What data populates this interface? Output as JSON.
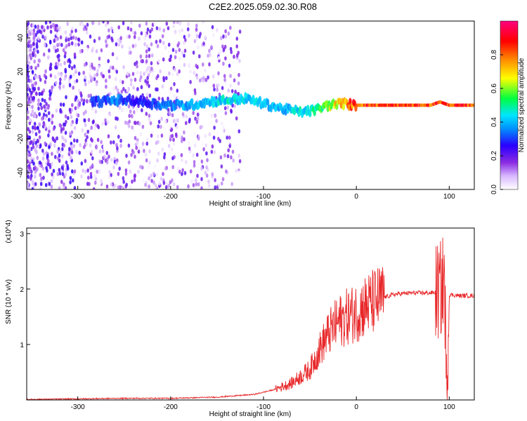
{
  "figure": {
    "title": "C2E2.2025.059.02.30.R08"
  },
  "chart_data": [
    {
      "type": "heatmap",
      "xlabel": "Height of straight line (km)",
      "ylabel": "Frequency (Hz)",
      "xlim": [
        -355,
        127
      ],
      "ylim": [
        -50,
        50
      ],
      "xticks": [
        -300,
        -200,
        -100,
        0,
        100
      ],
      "yticks": [
        -40,
        -20,
        0,
        20,
        40
      ],
      "colorbar": {
        "label": "Normalized spectral amplitude",
        "ticks": [
          "0.0",
          "0.2",
          "0.4",
          "0.6",
          "0.8"
        ],
        "range": [
          0,
          1
        ],
        "colormap": "rainbow (white-violet-blue-cyan-green-yellow-red-magenta)"
      },
      "ridge": {
        "note": "dominant frequency band near 0 Hz",
        "x": [
          -280,
          -260,
          -240,
          -220,
          -200,
          -180,
          -160,
          -140,
          -120,
          -100,
          -80,
          -60,
          -45,
          -30,
          -15,
          0,
          20,
          40,
          60,
          80,
          90,
          100,
          127
        ],
        "freq": [
          2,
          3,
          3,
          1,
          0,
          0,
          2,
          3,
          4,
          1,
          -2,
          -4,
          -3,
          0,
          1,
          0,
          0,
          0,
          0,
          0,
          2,
          0,
          0
        ],
        "amplitude": [
          0.35,
          0.4,
          0.3,
          0.35,
          0.4,
          0.45,
          0.45,
          0.5,
          0.5,
          0.45,
          0.45,
          0.5,
          0.55,
          0.7,
          0.85,
          0.95,
          0.95,
          0.95,
          0.95,
          0.95,
          0.98,
          0.95,
          0.95
        ]
      }
    },
    {
      "type": "line",
      "xlabel": "Height of straight line (km)",
      "ylabel": "SNR (10 * v/v)",
      "y_multiplier": "(x10^4)",
      "xlim": [
        -355,
        127
      ],
      "ylim": [
        0,
        3.1
      ],
      "xticks": [
        -300,
        -200,
        -100,
        0,
        100
      ],
      "yticks": [
        1,
        2,
        3
      ],
      "color": "#e8282a",
      "series": [
        {
          "x": [
            -355,
            -300,
            -250,
            -200,
            -150,
            -110,
            -90,
            -70,
            -50,
            -40,
            -30,
            -20,
            -10,
            0,
            10,
            20,
            30,
            40,
            50,
            60,
            70,
            80,
            90,
            95,
            97,
            100,
            110,
            127
          ],
          "y": [
            0.01,
            0.02,
            0.03,
            0.03,
            0.05,
            0.1,
            0.18,
            0.3,
            0.55,
            0.9,
            1.2,
            1.4,
            1.5,
            1.58,
            1.7,
            1.78,
            1.85,
            1.9,
            1.92,
            1.93,
            1.93,
            1.93,
            1.95,
            2.2,
            0.05,
            1.9,
            1.88,
            1.88
          ]
        }
      ]
    }
  ]
}
